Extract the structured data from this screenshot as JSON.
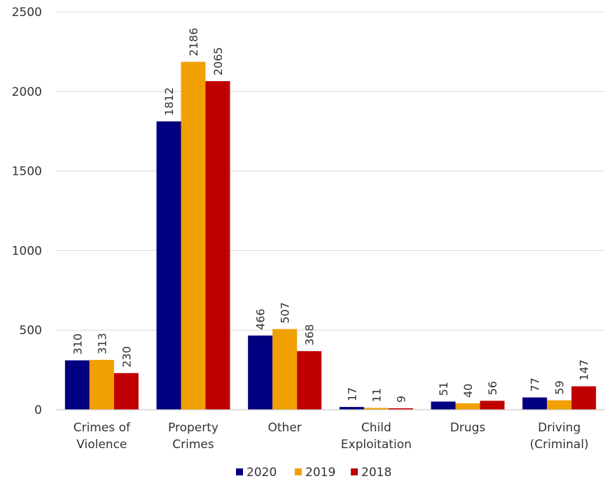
{
  "chart_data": {
    "type": "bar",
    "categories": [
      [
        "Crimes of",
        "Violence"
      ],
      [
        "Property",
        "Crimes"
      ],
      [
        "Other"
      ],
      [
        "Child",
        "Exploitation"
      ],
      [
        "Drugs"
      ],
      [
        "Driving",
        "(Criminal)"
      ]
    ],
    "series": [
      {
        "name": "2020",
        "color": "#000080",
        "values": [
          310,
          1812,
          466,
          17,
          51,
          77
        ]
      },
      {
        "name": "2019",
        "color": "#F0A000",
        "values": [
          313,
          2186,
          507,
          11,
          40,
          59
        ]
      },
      {
        "name": "2018",
        "color": "#C00000",
        "values": [
          230,
          2065,
          368,
          9,
          56,
          147
        ]
      }
    ],
    "yticks": [
      0,
      500,
      1000,
      1500,
      2000,
      2500
    ],
    "ylim": [
      0,
      2500
    ],
    "grid": true,
    "legend_position": "bottom",
    "data_labels": true
  }
}
